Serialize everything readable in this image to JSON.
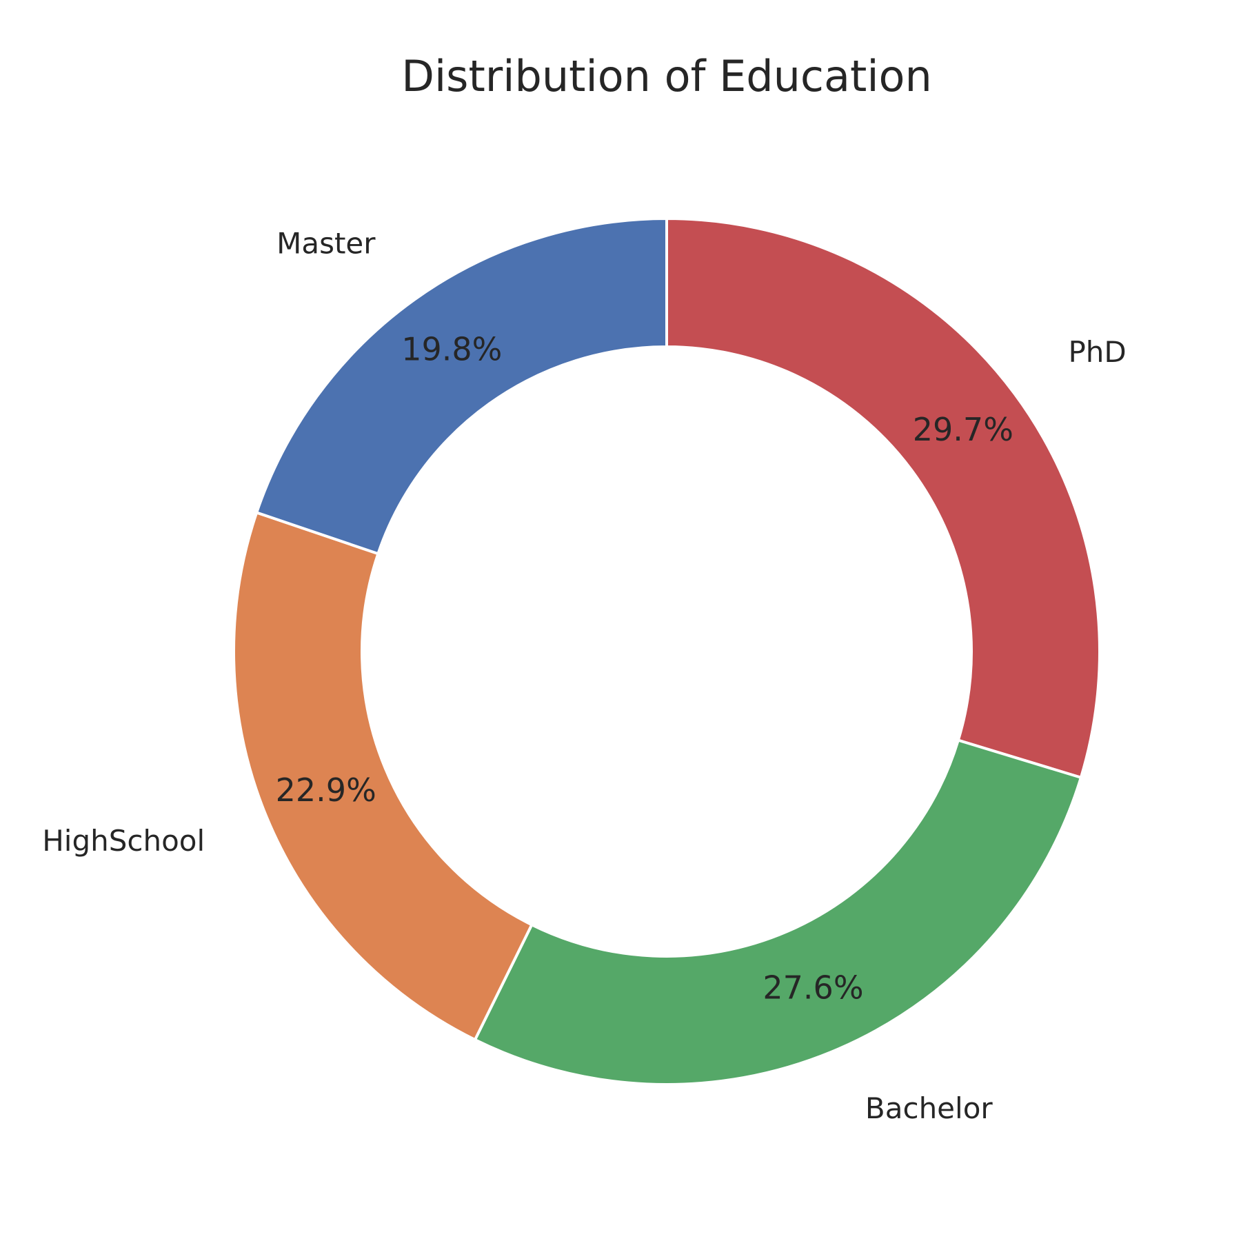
{
  "chart_data": {
    "type": "pie",
    "style": "donut",
    "title": "Distribution of Education",
    "categories": [
      "PhD",
      "Bachelor",
      "HighSchool",
      "Master"
    ],
    "values": [
      29.7,
      27.6,
      22.9,
      19.8
    ],
    "value_labels": [
      "29.7%",
      "27.6%",
      "22.9%",
      "19.8%"
    ],
    "colors": [
      "#C44E52",
      "#55A868",
      "#DD8452",
      "#4C72B0"
    ],
    "start_angle_deg": 90,
    "direction": "clockwise"
  }
}
